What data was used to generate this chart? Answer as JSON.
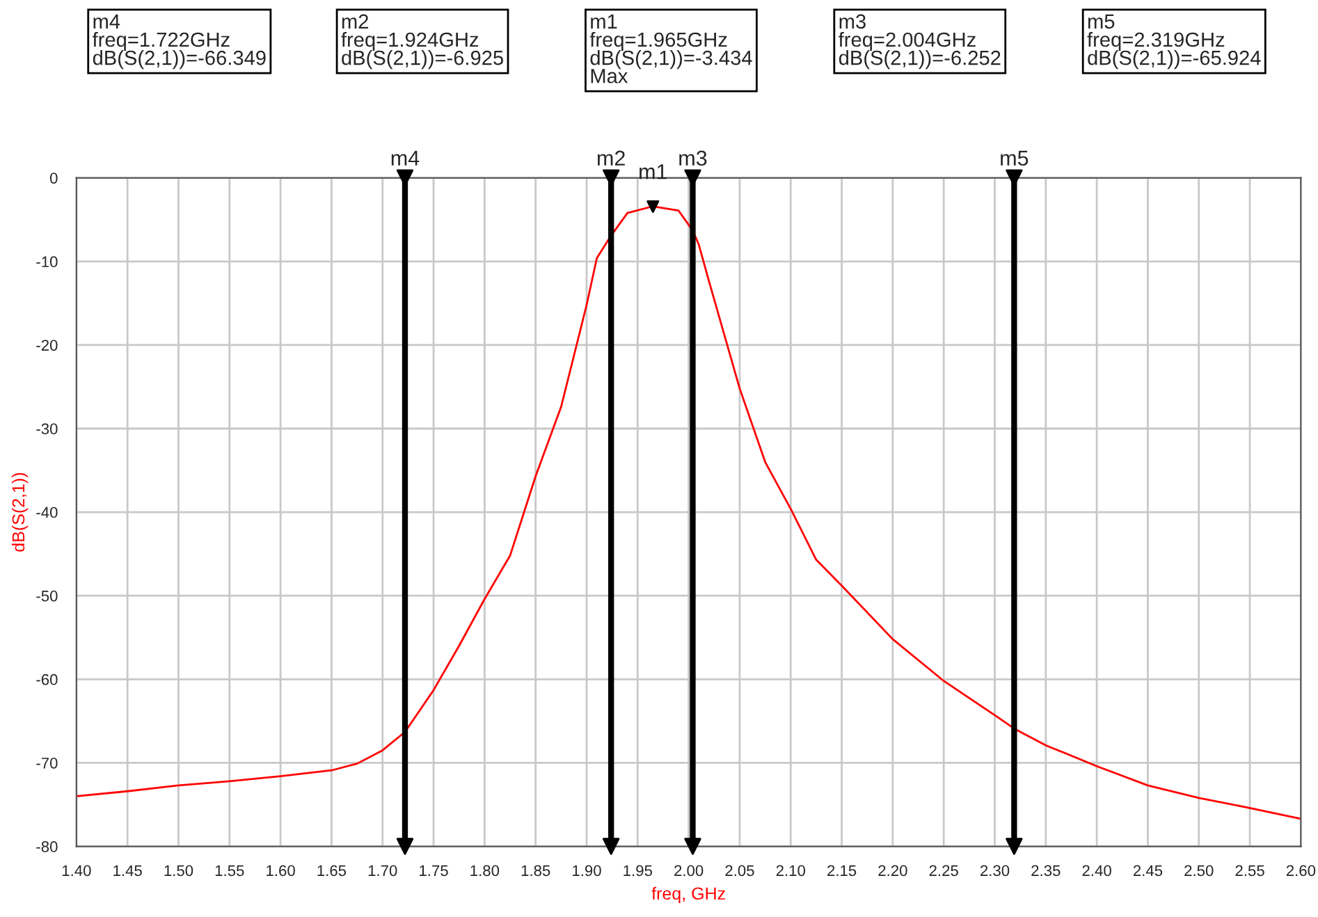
{
  "chart_data": {
    "type": "line",
    "xlabel": "freq, GHz",
    "ylabel": "dB(S(2,1))",
    "x": [
      1.4,
      1.45,
      1.5,
      1.55,
      1.6,
      1.65,
      1.675,
      1.7,
      1.722,
      1.75,
      1.775,
      1.8,
      1.825,
      1.85,
      1.875,
      1.9,
      1.91,
      1.924,
      1.94,
      1.965,
      1.99,
      2.004,
      2.01,
      2.02,
      2.05,
      2.075,
      2.1,
      2.125,
      2.15,
      2.2,
      2.25,
      2.3,
      2.319,
      2.35,
      2.4,
      2.45,
      2.5,
      2.55,
      2.6
    ],
    "series": [
      {
        "color": "#ff0000",
        "values": [
          -74.0,
          -73.4,
          -72.7,
          -72.2,
          -71.6,
          -70.9,
          -70.1,
          -68.5,
          -66.3,
          -61.3,
          -56.0,
          -50.4,
          -45.2,
          -35.7,
          -27.4,
          -15.2,
          -9.6,
          -6.9,
          -4.2,
          -3.4,
          -3.9,
          -6.3,
          -8.0,
          -12.4,
          -25.2,
          -34.0,
          -39.6,
          -45.7,
          -48.8,
          -55.2,
          -60.2,
          -64.3,
          -65.9,
          -67.9,
          -70.4,
          -72.7,
          -74.2,
          -75.4,
          -76.7
        ]
      }
    ],
    "xlim": [
      1.4,
      2.6
    ],
    "xticks": [
      {
        "value": 1.4,
        "label": "1.40"
      },
      {
        "value": 1.45,
        "label": "1.45"
      },
      {
        "value": 1.5,
        "label": "1.50"
      },
      {
        "value": 1.55,
        "label": "1.55"
      },
      {
        "value": 1.6,
        "label": "1.60"
      },
      {
        "value": 1.65,
        "label": "1.65"
      },
      {
        "value": 1.7,
        "label": "1.70"
      },
      {
        "value": 1.75,
        "label": "1.75"
      },
      {
        "value": 1.8,
        "label": "1.80"
      },
      {
        "value": 1.85,
        "label": "1.85"
      },
      {
        "value": 1.9,
        "label": "1.90"
      },
      {
        "value": 1.95,
        "label": "1.95"
      },
      {
        "value": 2.0,
        "label": "2.00"
      },
      {
        "value": 2.05,
        "label": "2.05"
      },
      {
        "value": 2.1,
        "label": "2.10"
      },
      {
        "value": 2.15,
        "label": "2.15"
      },
      {
        "value": 2.2,
        "label": "2.20"
      },
      {
        "value": 2.25,
        "label": "2.25"
      },
      {
        "value": 2.3,
        "label": "2.30"
      },
      {
        "value": 2.35,
        "label": "2.35"
      },
      {
        "value": 2.4,
        "label": "2.40"
      },
      {
        "value": 2.45,
        "label": "2.45"
      },
      {
        "value": 2.5,
        "label": "2.50"
      },
      {
        "value": 2.55,
        "label": "2.55"
      },
      {
        "value": 2.6,
        "label": "2.60"
      }
    ],
    "ylim": [
      -80,
      0
    ],
    "yticks": [
      -80,
      -70,
      -60,
      -50,
      -40,
      -30,
      -20,
      -10,
      0
    ],
    "grid": true,
    "ref_lines": [
      {
        "axis": "x",
        "value": 1.722,
        "label": "m4",
        "color": "#000000"
      },
      {
        "axis": "x",
        "value": 1.924,
        "label": "m2",
        "color": "#000000"
      },
      {
        "axis": "x",
        "value": 2.004,
        "label": "m3",
        "color": "#000000"
      },
      {
        "axis": "x",
        "value": 2.319,
        "label": "m5",
        "color": "#000000"
      }
    ],
    "annotations": [
      "m4\nfreq=1.722GHz\ndB(S(2,1))=-66.349",
      "m2\nfreq=1.924GHz\ndB(S(2,1))=-6.925",
      "m1\nfreq=1.965GHz\ndB(S(2,1))=-3.434\nMax",
      "m3\nfreq=2.004GHz\ndB(S(2,1))=-6.252",
      "m5\nfreq=2.319GHz\ndB(S(2,1))=-65.924",
      {
        "text": "m1",
        "x": 1.965,
        "y": -3.434
      }
    ]
  }
}
